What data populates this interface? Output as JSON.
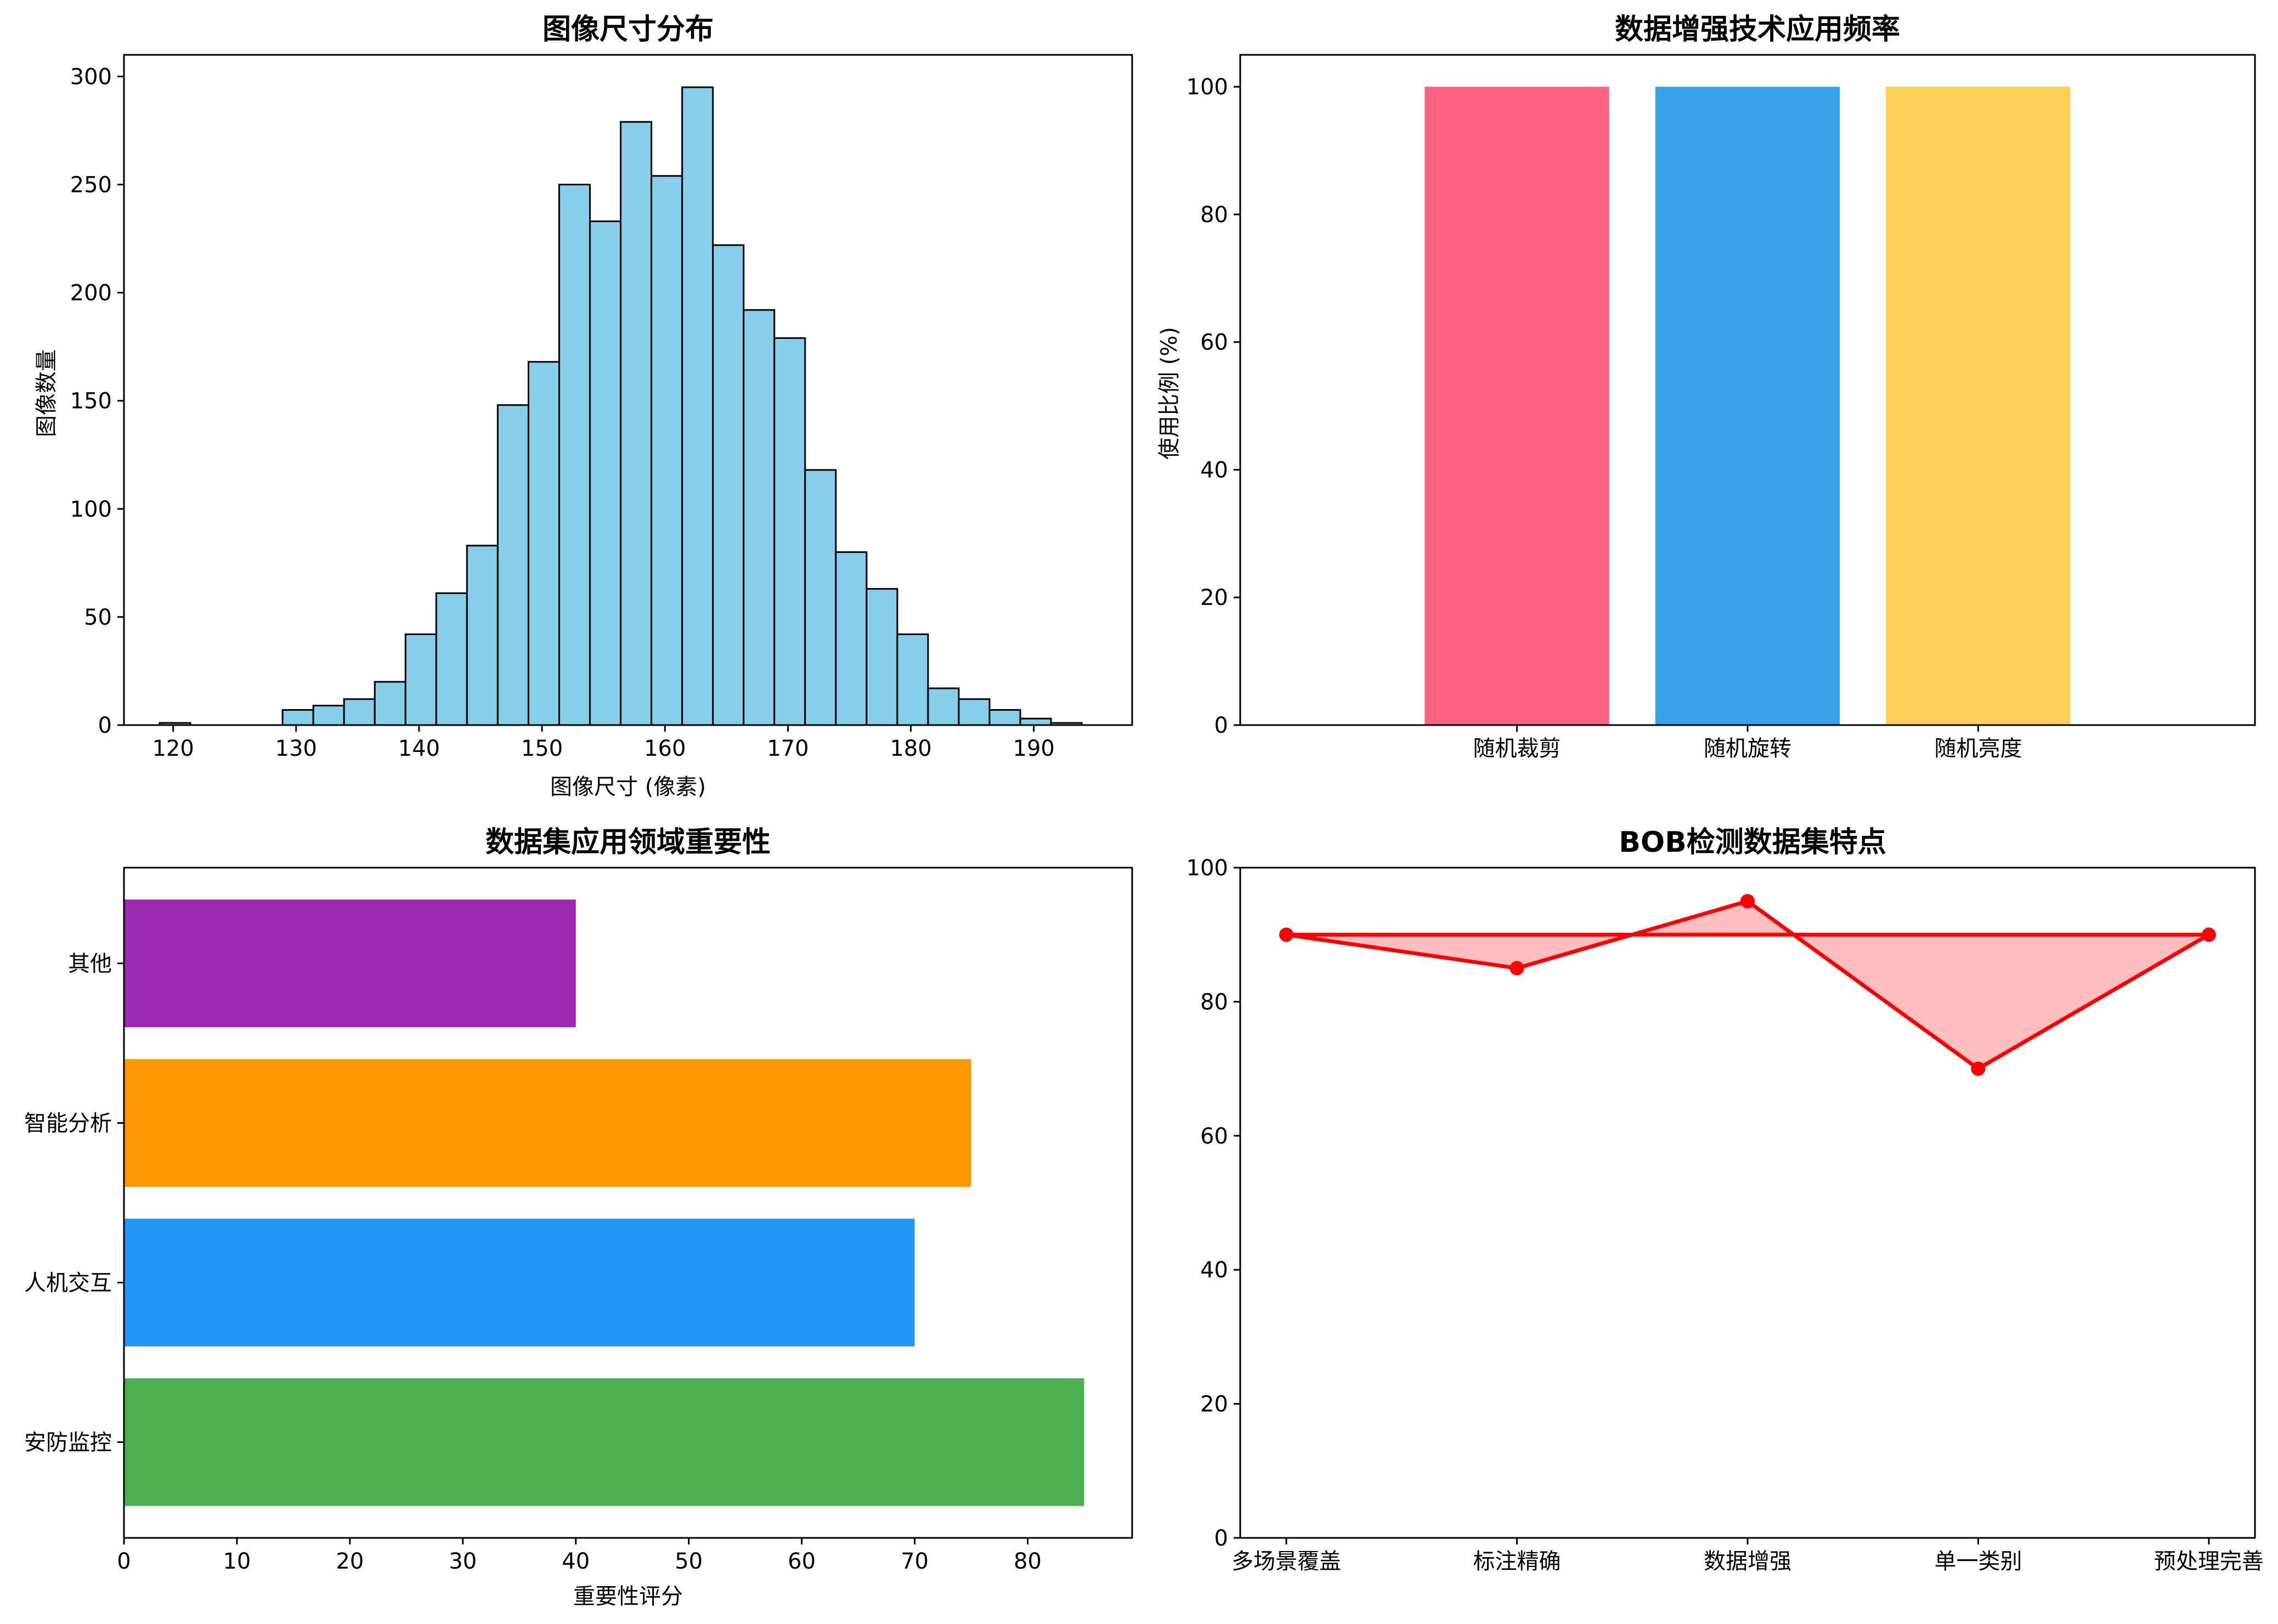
{
  "chart_data": [
    {
      "type": "bar",
      "subtype": "histogram",
      "title": "图像尺寸分布",
      "xlabel": "图像尺寸 (像素)",
      "ylabel": "图像数量",
      "bin_edges": [
        118.9,
        121.4,
        123.9,
        126.4,
        128.9,
        131.4,
        133.9,
        136.4,
        138.9,
        141.4,
        143.9,
        146.4,
        148.9,
        151.4,
        153.9,
        156.4,
        158.9,
        161.4,
        163.9,
        166.4,
        168.9,
        171.4,
        173.9,
        176.4,
        178.9,
        181.4,
        183.9,
        186.4,
        188.9,
        191.4,
        193.9
      ],
      "values": [
        1,
        0,
        0,
        0,
        7,
        9,
        12,
        20,
        42,
        61,
        83,
        148,
        168,
        250,
        233,
        279,
        254,
        295,
        222,
        192,
        179,
        118,
        80,
        63,
        42,
        17,
        12,
        7,
        3,
        1
      ],
      "bar_color": "#87CEEB",
      "edge_color": "#000000",
      "xticks": [
        "120",
        "130",
        "140",
        "150",
        "160",
        "170",
        "180",
        "190"
      ],
      "yticks": [
        "0",
        "50",
        "100",
        "150",
        "200",
        "250",
        "300"
      ],
      "xlim": [
        116,
        198
      ],
      "ylim": [
        0,
        310
      ]
    },
    {
      "type": "bar",
      "title": "数据增强技术应用频率",
      "xlabel": "",
      "ylabel": "使用比例 (%)",
      "categories": [
        "随机裁剪",
        "随机旋转",
        "随机亮度"
      ],
      "values": [
        100,
        100,
        100
      ],
      "colors": [
        "#FF6384",
        "#36A2EB",
        "#FFCE56"
      ],
      "yticks": [
        "0",
        "20",
        "40",
        "60",
        "80",
        "100"
      ],
      "ylim": [
        0,
        105
      ]
    },
    {
      "type": "bar",
      "orientation": "horizontal",
      "title": "数据集应用领域重要性",
      "xlabel": "重要性评分",
      "ylabel": "",
      "categories": [
        "安防监控",
        "人机交互",
        "智能分析",
        "其他"
      ],
      "values": [
        85,
        70,
        75,
        40
      ],
      "colors": [
        "#4CAF50",
        "#2196F3",
        "#FF9800",
        "#9C27B0"
      ],
      "xticks": [
        "0",
        "10",
        "20",
        "30",
        "40",
        "50",
        "60",
        "70",
        "80"
      ],
      "xlim": [
        0,
        89.25
      ]
    },
    {
      "type": "line",
      "title": "BOB检测数据集特点",
      "xlabel": "",
      "ylabel": "",
      "categories": [
        "多场景覆盖",
        "标注精确",
        "数据增强",
        "单一类别",
        "预处理完善"
      ],
      "values": [
        90,
        85,
        95,
        70,
        90
      ],
      "closed": true,
      "line_color": "#FF0000",
      "fill_color": "#FFBFBF",
      "yticks": [
        "0",
        "20",
        "40",
        "60",
        "80",
        "100"
      ],
      "ylim": [
        0,
        100
      ]
    }
  ]
}
